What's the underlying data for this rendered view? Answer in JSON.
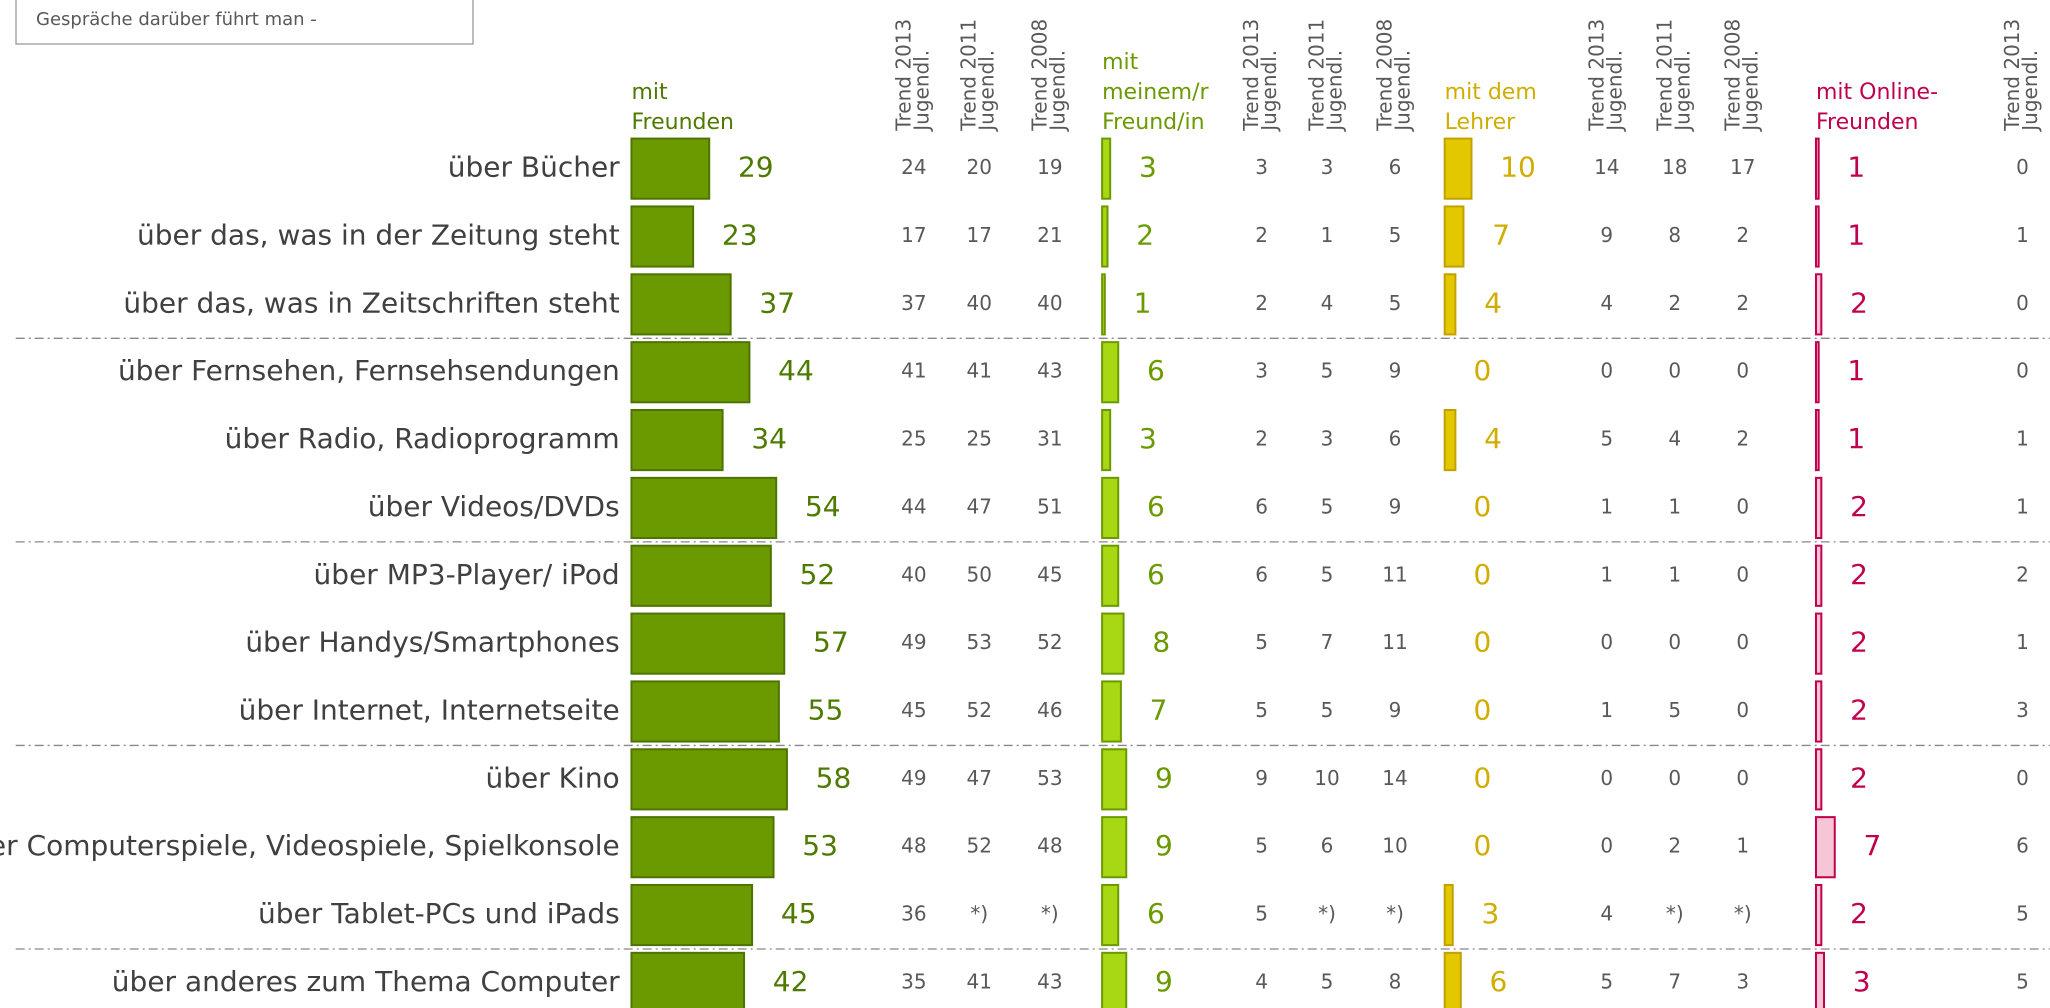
{
  "note": "Gespräche darüber führt man -",
  "categories": [
    "über Bücher",
    "über das, was in der Zeitung steht",
    "über das, was in Zeitschriften steht",
    "über Fernsehen, Fernsehsendungen",
    "über Radio, Radioprogramm",
    "über Videos/DVDs",
    "über MP3-Player/ iPod",
    "über Handys/Smartphones",
    "über Internet, Internetseite",
    "über Kino",
    "über Computerspiele, Videospiele, Spielkonsole",
    "über Tablet-PCs und iPads",
    "über anderes zum Thema Computer"
  ],
  "groups": [
    {
      "label": [
        "mit",
        "Freunden"
      ],
      "color": "#6b9a00",
      "border": "#4f7300",
      "text_color": "#4f7a00",
      "values": [
        29,
        23,
        37,
        44,
        34,
        54,
        52,
        57,
        55,
        58,
        53,
        45,
        42
      ],
      "trends": [
        {
          "header": [
            "Trend 2013",
            "Jugendl."
          ],
          "values": [
            24,
            17,
            37,
            41,
            25,
            44,
            40,
            49,
            45,
            49,
            48,
            36,
            35
          ]
        },
        {
          "header": [
            "Trend 2011",
            "Jugendl."
          ],
          "values": [
            20,
            17,
            40,
            41,
            25,
            47,
            50,
            53,
            52,
            47,
            52,
            "*)",
            41
          ]
        },
        {
          "header": [
            "Trend 2008",
            "Jugendl."
          ],
          "values": [
            19,
            21,
            40,
            43,
            31,
            51,
            45,
            52,
            46,
            53,
            48,
            "*)",
            43
          ]
        }
      ]
    },
    {
      "label": [
        "mit",
        "meinem/r",
        "Freund/in"
      ],
      "color": "#a8d814",
      "border": "#6b9a00",
      "text_color": "#6b9a00",
      "values": [
        3,
        2,
        1,
        6,
        3,
        6,
        6,
        8,
        7,
        9,
        9,
        6,
        9
      ],
      "trends": [
        {
          "header": [
            "Trend 2013",
            "Jugendl."
          ],
          "values": [
            3,
            2,
            2,
            3,
            2,
            6,
            6,
            5,
            5,
            9,
            5,
            5,
            4
          ]
        },
        {
          "header": [
            "Trend 2011",
            "Jugendl."
          ],
          "values": [
            3,
            1,
            4,
            5,
            3,
            5,
            5,
            7,
            5,
            10,
            6,
            "*)",
            5
          ]
        },
        {
          "header": [
            "Trend 2008",
            "Jugendl."
          ],
          "values": [
            6,
            5,
            5,
            9,
            6,
            9,
            11,
            11,
            9,
            14,
            10,
            "*)",
            8
          ]
        }
      ]
    },
    {
      "label": [
        "mit dem",
        "Lehrer"
      ],
      "color": "#e3c800",
      "border": "#c2a000",
      "text_color": "#d0ad00",
      "values": [
        10,
        7,
        4,
        0,
        4,
        0,
        0,
        0,
        0,
        0,
        0,
        3,
        6
      ],
      "trends": [
        {
          "header": [
            "Trend 2013",
            "Jugendl."
          ],
          "values": [
            14,
            9,
            4,
            0,
            5,
            1,
            1,
            0,
            1,
            0,
            0,
            4,
            5
          ]
        },
        {
          "header": [
            "Trend 2011",
            "Jugendl."
          ],
          "values": [
            18,
            8,
            2,
            0,
            4,
            1,
            1,
            0,
            5,
            0,
            2,
            "*)",
            7
          ]
        },
        {
          "header": [
            "Trend 2008",
            "Jugendl."
          ],
          "values": [
            17,
            2,
            2,
            0,
            2,
            0,
            0,
            0,
            0,
            0,
            1,
            "*)",
            3
          ]
        }
      ]
    },
    {
      "label": [
        "mit Online-",
        "Freunden"
      ],
      "color": "#f7c6d6",
      "border": "#c0004e",
      "text_color": "#c0004e",
      "values": [
        1,
        1,
        2,
        1,
        1,
        2,
        2,
        2,
        2,
        2,
        7,
        2,
        3
      ],
      "trends": [
        {
          "header": [
            "Trend 2013",
            "Jugendl."
          ],
          "values": [
            0,
            1,
            0,
            0,
            1,
            1,
            2,
            1,
            3,
            0,
            6,
            5,
            5
          ]
        }
      ]
    }
  ]
}
